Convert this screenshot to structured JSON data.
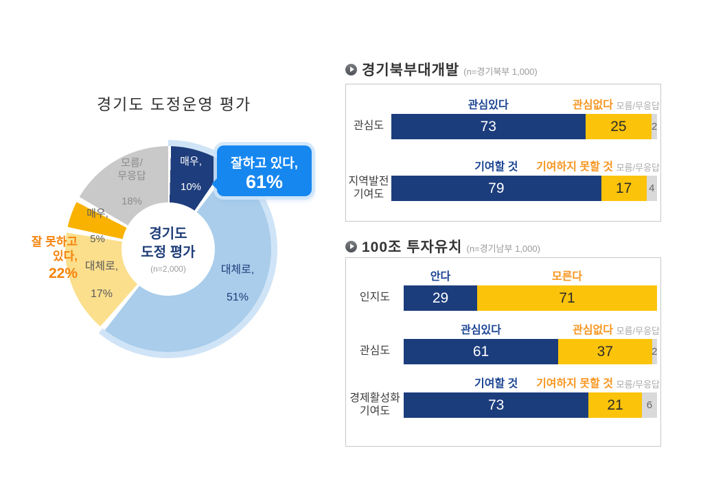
{
  "main_title": "경기도 도정운영 평가",
  "colors": {
    "bar_positive": "#1C3D7C",
    "bar_negative": "#FBC30A",
    "bar_dontknow": "#D9D9D9",
    "legend_positive": "#1A4393",
    "legend_negative": "#F7941D",
    "legend_dontknow": "#A9A9A9",
    "callout_blue": "#1787F0",
    "callout_orange": "#F5820B",
    "donut_halo": "#D0E4F7"
  },
  "donut_section": {
    "center_title": "경기도\n도정 평가",
    "center_sample": "(n=2,000)",
    "halo_color": "#D0E4F7",
    "positive_total": 61,
    "callout_positive": {
      "label": "잘하고 있다,",
      "value": "61%"
    },
    "callout_negative": {
      "label": "잘 못하고\n있다,",
      "value": "22%"
    },
    "slices": [
      {
        "name": "very-well",
        "label": "매우,",
        "value": "10%",
        "pct": 10,
        "color": "#1E3D7C"
      },
      {
        "name": "somewhat-well",
        "label": "대체로,",
        "value": "51%",
        "pct": 51,
        "color": "#A9CDEB"
      },
      {
        "name": "somewhat-poorly",
        "label": "대체로,",
        "value": "17%",
        "pct": 17,
        "color": "#FBDF8D"
      },
      {
        "name": "very-poorly",
        "label": "매우,",
        "value": "5%",
        "pct": 5,
        "color": "#F9B200"
      },
      {
        "name": "dont-know",
        "label": "모름/\n무응답",
        "value": "18%",
        "pct": 18,
        "color": "#C9C9C9"
      }
    ]
  },
  "sections": [
    {
      "title": "경기북부대개발",
      "sample": "(n=경기북부 1,000)",
      "rows": [
        {
          "category": "관심도",
          "pos_label": "관심있다",
          "neg_label": "관심없다",
          "dk_label": "모름/무응답",
          "pos": 73,
          "neg": 25,
          "dk": 2
        },
        {
          "category": "지역발전\n기여도",
          "pos_label": "기여할 것",
          "neg_label": "기여하지 못할 것",
          "dk_label": "모름/무응답",
          "pos": 79,
          "neg": 17,
          "dk": 4
        }
      ]
    },
    {
      "title": "100조 투자유치",
      "sample": "(n=경기남부 1,000)",
      "rows": [
        {
          "category": "인지도",
          "pos_label": "안다",
          "neg_label": "모른다",
          "dk_label": "",
          "pos": 29,
          "neg": 71,
          "dk": 0
        },
        {
          "category": "관심도",
          "pos_label": "관심있다",
          "neg_label": "관심없다",
          "dk_label": "모름/무응답",
          "pos": 61,
          "neg": 37,
          "dk": 2
        },
        {
          "category": "경제활성화\n기여도",
          "pos_label": "기여할 것",
          "neg_label": "기여하지 못할 것",
          "dk_label": "모름/무응답",
          "pos": 73,
          "neg": 21,
          "dk": 6
        }
      ]
    }
  ],
  "chart_data": [
    {
      "type": "pie",
      "subtype": "donut",
      "title": "경기도 도정운영 평가",
      "center_label": "경기도 도정 평가 (n=2,000)",
      "slices": [
        {
          "label": "매우 (잘하고 있다)",
          "value": 10,
          "color": "#1E3D7C"
        },
        {
          "label": "대체로 (잘하고 있다)",
          "value": 51,
          "color": "#A9CDEB"
        },
        {
          "label": "대체로 (잘 못하고 있다)",
          "value": 17,
          "color": "#FBDF8D"
        },
        {
          "label": "매우 (잘 못하고 있다)",
          "value": 5,
          "color": "#F9B200"
        },
        {
          "label": "모름/무응답",
          "value": 18,
          "color": "#C9C9C9"
        }
      ],
      "annotations": [
        "잘하고 있다, 61%",
        "잘 못하고 있다, 22%"
      ],
      "start_angle_deg": 0,
      "direction": "clockwise"
    },
    {
      "type": "bar",
      "subtype": "horizontal-stacked-100",
      "title": "경기북부대개발",
      "sample": "n=경기북부 1,000",
      "categories": [
        "관심도",
        "지역발전 기여도"
      ],
      "series": [
        {
          "name": "긍정 (관심있다 / 기여할 것)",
          "values": [
            73,
            79
          ],
          "color": "#1C3D7C"
        },
        {
          "name": "부정 (관심없다 / 기여하지 못할 것)",
          "values": [
            25,
            17
          ],
          "color": "#FBC30A"
        },
        {
          "name": "모름/무응답",
          "values": [
            2,
            4
          ],
          "color": "#D9D9D9"
        }
      ],
      "xlim": [
        0,
        100
      ]
    },
    {
      "type": "bar",
      "subtype": "horizontal-stacked-100",
      "title": "100조 투자유치",
      "sample": "n=경기남부 1,000",
      "categories": [
        "인지도",
        "관심도",
        "경제활성화 기여도"
      ],
      "series": [
        {
          "name": "긍정 (안다 / 관심있다 / 기여할 것)",
          "values": [
            29,
            61,
            73
          ],
          "color": "#1C3D7C"
        },
        {
          "name": "부정 (모른다 / 관심없다 / 기여하지 못할 것)",
          "values": [
            71,
            37,
            21
          ],
          "color": "#FBC30A"
        },
        {
          "name": "모름/무응답",
          "values": [
            0,
            2,
            6
          ],
          "color": "#D9D9D9"
        }
      ],
      "xlim": [
        0,
        100
      ]
    }
  ]
}
